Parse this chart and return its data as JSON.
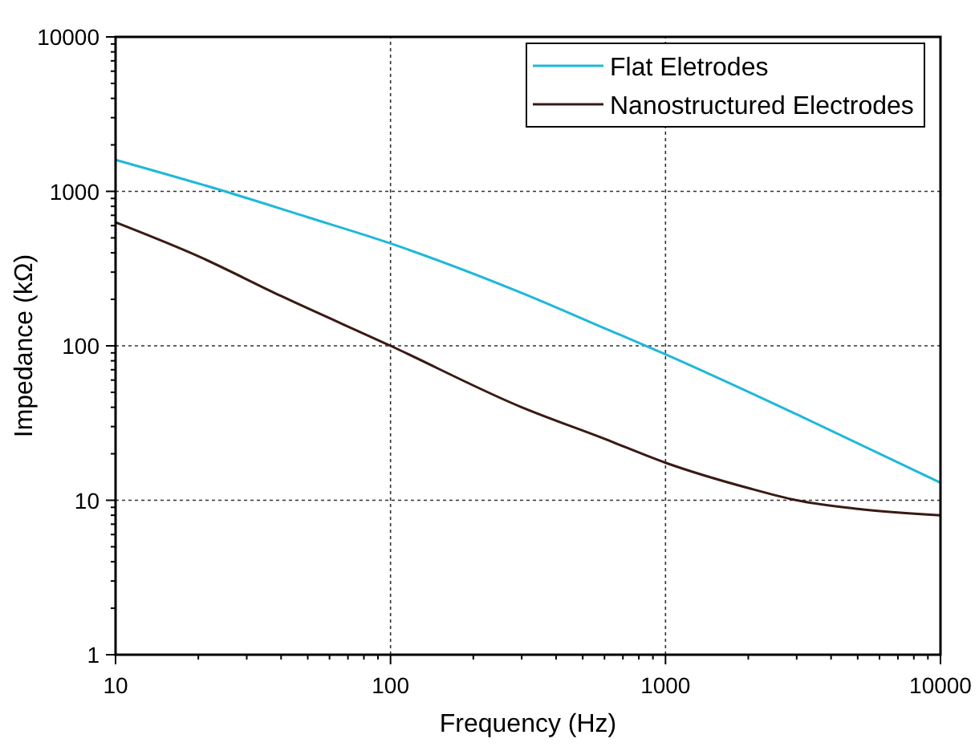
{
  "chart_data": {
    "type": "line",
    "xlabel": "Frequency (Hz)",
    "ylabel": "Impedance (kΩ)",
    "log": "xy",
    "grid": true,
    "legend": "top right",
    "xlim": [
      10,
      10000
    ],
    "ylim": [
      1,
      10000
    ],
    "xticks": [
      10,
      {
        "value": 20,
        "label": null
      },
      {
        "value": 30,
        "label": null
      },
      {
        "value": 40,
        "label": null
      },
      {
        "value": 50,
        "label": null
      },
      {
        "value": 60,
        "label": null
      },
      {
        "value": 70,
        "label": null
      },
      {
        "value": 80,
        "label": null
      },
      {
        "value": 90,
        "label": null
      },
      100,
      {
        "value": 200,
        "label": null
      },
      {
        "value": 300,
        "label": null
      },
      {
        "value": 400,
        "label": null
      },
      {
        "value": 500,
        "label": null
      },
      {
        "value": 600,
        "label": null
      },
      {
        "value": 700,
        "label": null
      },
      {
        "value": 800,
        "label": null
      },
      {
        "value": 900,
        "label": null
      },
      1000,
      {
        "value": 2000,
        "label": null
      },
      {
        "value": 3000,
        "label": null
      },
      {
        "value": 4000,
        "label": null
      },
      {
        "value": 5000,
        "label": null
      },
      {
        "value": 6000,
        "label": null
      },
      {
        "value": 7000,
        "label": null
      },
      {
        "value": 8000,
        "label": null
      },
      {
        "value": 9000,
        "label": null
      },
      10000
    ],
    "yticks": [
      1,
      {
        "value": 2,
        "label": null
      },
      {
        "value": 3,
        "label": null
      },
      {
        "value": 4,
        "label": null
      },
      {
        "value": 5,
        "label": null
      },
      {
        "value": 6,
        "label": null
      },
      {
        "value": 7,
        "label": null
      },
      {
        "value": 8,
        "label": null
      },
      {
        "value": 9,
        "label": null
      },
      10,
      {
        "value": 20,
        "label": null
      },
      {
        "value": 30,
        "label": null
      },
      {
        "value": 40,
        "label": null
      },
      {
        "value": 50,
        "label": null
      },
      {
        "value": 60,
        "label": null
      },
      {
        "value": 70,
        "label": null
      },
      {
        "value": 80,
        "label": null
      },
      {
        "value": 90,
        "label": null
      },
      100,
      {
        "value": 200,
        "label": null
      },
      {
        "value": 300,
        "label": null
      },
      {
        "value": 400,
        "label": null
      },
      {
        "value": 500,
        "label": null
      },
      {
        "value": 600,
        "label": null
      },
      {
        "value": 700,
        "label": null
      },
      {
        "value": 800,
        "label": null
      },
      {
        "value": 900,
        "label": null
      },
      1000,
      {
        "value": 2000,
        "label": null
      },
      {
        "value": 3000,
        "label": null
      },
      {
        "value": 4000,
        "label": null
      },
      {
        "value": 5000,
        "label": null
      },
      {
        "value": 6000,
        "label": null
      },
      {
        "value": 7000,
        "label": null
      },
      {
        "value": 8000,
        "label": null
      },
      {
        "value": 9000,
        "label": null
      },
      10000
    ],
    "series": [
      {
        "name": "Flat Eletrodes",
        "color": "#1fb8d8",
        "x": [
          10,
          25,
          50,
          100,
          300,
          600,
          1000,
          3000,
          10000
        ],
        "values": [
          1600,
          1000,
          680,
          460,
          220,
          130,
          88,
          36,
          13
        ]
      },
      {
        "name": "Nanostructured Electrodes",
        "color": "#3a1a14",
        "x": [
          10,
          20,
          40,
          100,
          300,
          600,
          1000,
          2000,
          3000,
          5000,
          10000
        ],
        "values": [
          630,
          380,
          210,
          100,
          40,
          25,
          17.5,
          12,
          10,
          8.8,
          8
        ]
      }
    ]
  }
}
